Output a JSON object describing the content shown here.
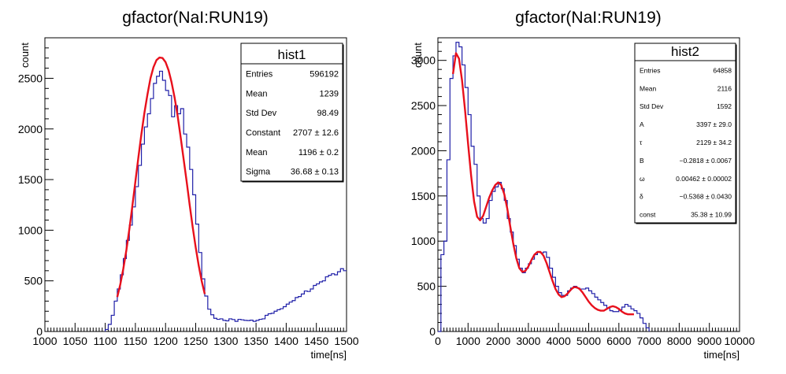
{
  "chart_data": [
    {
      "type": "histogram",
      "title": "gfactor(NaI:RUN19)",
      "xlabel": "time[ns]",
      "ylabel": "count",
      "xlim": [
        1000,
        1500
      ],
      "ylim": [
        0,
        2900
      ],
      "xticks": [
        "1000",
        "1050",
        "1100",
        "1150",
        "1200",
        "1250",
        "1300",
        "1350",
        "1400",
        "1450",
        "1500"
      ],
      "yticks": [
        "0",
        "500",
        "1000",
        "1500",
        "2000",
        "2500"
      ],
      "series": [
        {
          "kind": "histogram",
          "color": "#1f1fa8",
          "bin_width": 5,
          "x": [
            1100,
            1105,
            1110,
            1115,
            1120,
            1125,
            1130,
            1135,
            1140,
            1145,
            1150,
            1155,
            1160,
            1165,
            1170,
            1175,
            1180,
            1185,
            1190,
            1195,
            1200,
            1205,
            1210,
            1215,
            1220,
            1225,
            1230,
            1235,
            1240,
            1245,
            1250,
            1255,
            1260,
            1265,
            1270,
            1275,
            1280,
            1285,
            1290,
            1295,
            1300,
            1305,
            1310,
            1315,
            1320,
            1325,
            1330,
            1335,
            1340,
            1345,
            1350,
            1355,
            1360,
            1365,
            1370,
            1375,
            1380,
            1385,
            1390,
            1395,
            1400,
            1405,
            1410,
            1415,
            1420,
            1425,
            1430,
            1435,
            1440,
            1445,
            1450,
            1455,
            1460,
            1465,
            1470,
            1475,
            1480,
            1485,
            1490,
            1495
          ],
          "values": [
            20,
            70,
            160,
            300,
            420,
            560,
            720,
            900,
            1050,
            1230,
            1430,
            1640,
            1850,
            2020,
            2150,
            2300,
            2450,
            2520,
            2570,
            2480,
            2380,
            2330,
            2120,
            2230,
            2150,
            2200,
            1950,
            1820,
            1600,
            1350,
            1060,
            780,
            520,
            350,
            220,
            165,
            130,
            120,
            125,
            110,
            105,
            125,
            118,
            100,
            120,
            115,
            110,
            108,
            112,
            100,
            110,
            120,
            125,
            160,
            175,
            180,
            200,
            215,
            225,
            245,
            270,
            290,
            305,
            335,
            345,
            370,
            400,
            395,
            420,
            455,
            470,
            490,
            500,
            540,
            555,
            570,
            560,
            590,
            620,
            600
          ]
        },
        {
          "kind": "fit",
          "color": "#e8101c",
          "x": [
            1120,
            1125,
            1130,
            1135,
            1140,
            1145,
            1150,
            1155,
            1160,
            1165,
            1170,
            1175,
            1180,
            1185,
            1190,
            1195,
            1200,
            1205,
            1210,
            1215,
            1220,
            1225,
            1230,
            1235,
            1240,
            1245,
            1250,
            1255,
            1260,
            1265
          ],
          "values": [
            340,
            465,
            620,
            800,
            1010,
            1240,
            1480,
            1720,
            1950,
            2160,
            2340,
            2500,
            2610,
            2680,
            2705,
            2700,
            2660,
            2580,
            2460,
            2310,
            2130,
            1920,
            1700,
            1480,
            1250,
            1030,
            830,
            650,
            495,
            370
          ]
        }
      ],
      "stats": {
        "name": "hist1",
        "rows": [
          {
            "label": "Entries",
            "value": "596192"
          },
          {
            "label": "Mean",
            "value": "1239"
          },
          {
            "label": "Std Dev",
            "value": "98.49"
          },
          {
            "label": "Constant",
            "value": "2707 ± 12.6"
          },
          {
            "label": "Mean",
            "value": "1196 ± 0.2"
          },
          {
            "label": "Sigma",
            "value": "36.68 ± 0.13"
          }
        ]
      }
    },
    {
      "type": "histogram",
      "title": "gfactor(NaI:RUN19)",
      "xlabel": "time[ns]",
      "ylabel": "count",
      "xlim": [
        0,
        10000
      ],
      "ylim": [
        0,
        3250
      ],
      "xticks": [
        "0",
        "1000",
        "2000",
        "3000",
        "4000",
        "5000",
        "6000",
        "7000",
        "8000",
        "9000",
        "10000"
      ],
      "yticks": [
        "0",
        "500",
        "1000",
        "1500",
        "2000",
        "2500",
        "3000"
      ],
      "series": [
        {
          "kind": "histogram",
          "color": "#1f1fa8",
          "bin_width": 100,
          "x": [
            0,
            100,
            200,
            300,
            400,
            500,
            600,
            700,
            800,
            900,
            1000,
            1100,
            1200,
            1300,
            1400,
            1500,
            1600,
            1700,
            1800,
            1900,
            2000,
            2100,
            2200,
            2300,
            2400,
            2500,
            2600,
            2700,
            2800,
            2900,
            3000,
            3100,
            3200,
            3300,
            3400,
            3500,
            3600,
            3700,
            3800,
            3900,
            4000,
            4100,
            4200,
            4300,
            4400,
            4500,
            4600,
            4700,
            4800,
            4900,
            5000,
            5100,
            5200,
            5300,
            5400,
            5500,
            5600,
            5700,
            5800,
            5900,
            6000,
            6100,
            6200,
            6300,
            6400,
            6500,
            6600,
            6700,
            6800,
            6900
          ],
          "values": [
            0,
            850,
            1000,
            1900,
            2800,
            3050,
            3200,
            3150,
            2950,
            2700,
            2400,
            2050,
            1850,
            1500,
            1250,
            1200,
            1250,
            1450,
            1550,
            1600,
            1650,
            1580,
            1450,
            1250,
            1100,
            950,
            800,
            700,
            650,
            700,
            750,
            800,
            850,
            880,
            870,
            880,
            820,
            700,
            600,
            500,
            430,
            400,
            400,
            450,
            480,
            500,
            480,
            470,
            470,
            480,
            450,
            420,
            380,
            350,
            320,
            290,
            260,
            230,
            220,
            220,
            240,
            270,
            300,
            280,
            250,
            230,
            200,
            150,
            90,
            40
          ]
        },
        {
          "kind": "fit",
          "color": "#e8101c",
          "x": [
            500,
            600,
            700,
            800,
            900,
            1000,
            1100,
            1200,
            1300,
            1400,
            1500,
            1600,
            1700,
            1800,
            1900,
            2000,
            2100,
            2200,
            2300,
            2400,
            2500,
            2600,
            2700,
            2800,
            2900,
            3000,
            3100,
            3200,
            3300,
            3400,
            3500,
            3600,
            3700,
            3800,
            3900,
            4000,
            4100,
            4200,
            4300,
            4400,
            4500,
            4600,
            4700,
            4800,
            4900,
            5000,
            5100,
            5200,
            5300,
            5400,
            5500,
            5600,
            5700,
            5800,
            5900,
            6000,
            6100,
            6200,
            6300,
            6400,
            6500
          ],
          "values": [
            2850,
            3080,
            3020,
            2780,
            2450,
            2080,
            1730,
            1440,
            1270,
            1230,
            1280,
            1380,
            1480,
            1560,
            1620,
            1650,
            1620,
            1520,
            1360,
            1160,
            970,
            810,
            700,
            660,
            670,
            720,
            790,
            850,
            880,
            880,
            840,
            760,
            660,
            560,
            470,
            410,
            380,
            390,
            420,
            460,
            490,
            490,
            470,
            430,
            380,
            330,
            290,
            260,
            240,
            230,
            230,
            250,
            270,
            280,
            270,
            250,
            220,
            200,
            190,
            190,
            190
          ]
        }
      ],
      "stats": {
        "name": "hist2",
        "rows": [
          {
            "label": "Entries",
            "value": "64858"
          },
          {
            "label": "Mean",
            "value": "2116"
          },
          {
            "label": "Std Dev",
            "value": "1592"
          },
          {
            "label": "A",
            "value": "3397 ± 29.0"
          },
          {
            "label": "τ",
            "value": "2129 ± 34.2"
          },
          {
            "label": "B",
            "value": "−0.2818 ± 0.0067"
          },
          {
            "label": "ω",
            "value": "0.00462 ± 0.00002"
          },
          {
            "label": "δ",
            "value": "−0.5368 ± 0.0430"
          },
          {
            "label": "const",
            "value": "35.38 ± 10.99"
          }
        ]
      }
    }
  ]
}
